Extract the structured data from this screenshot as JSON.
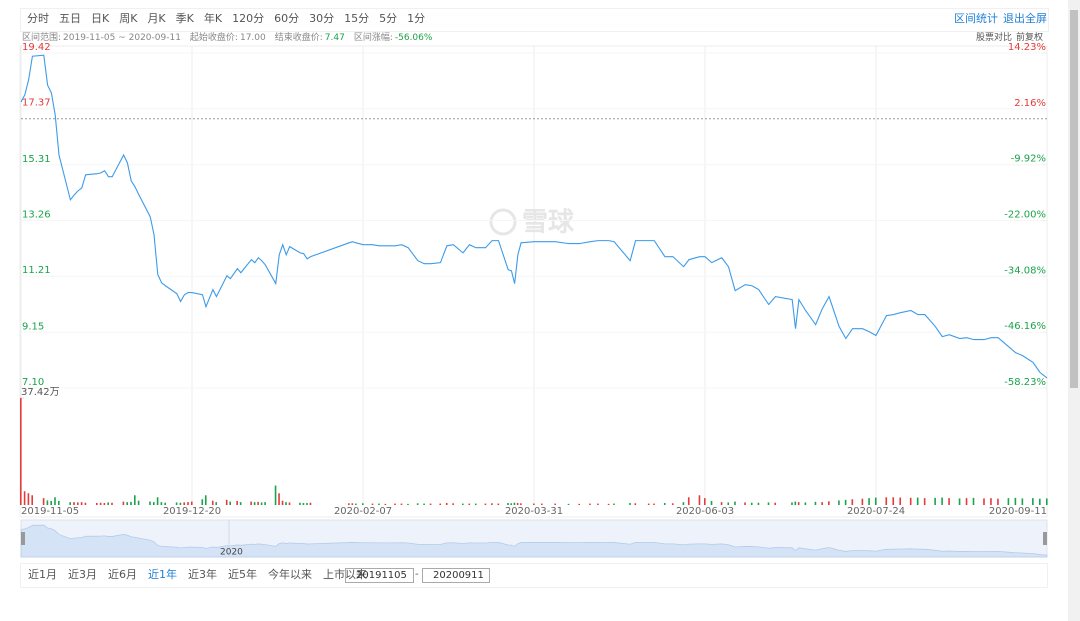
{
  "toolbar": {
    "periods": [
      "分时",
      "五日",
      "日K",
      "周K",
      "月K",
      "季K",
      "年K",
      "120分",
      "60分",
      "30分",
      "15分",
      "5分",
      "1分"
    ],
    "actions": [
      "区间统计",
      "退出全屏"
    ]
  },
  "summary": {
    "range_label": "区间范围:",
    "range": "2019-11-05 ~ 2020-09-11",
    "start_label": "起始收盘价:",
    "end_label": "结束收盘价:",
    "end_close": "7.47",
    "change_label": "区间涨幅:",
    "change": "-56.06%",
    "options": [
      "股票对比",
      "前复权"
    ]
  },
  "chart_data": {
    "type": "line",
    "color": "#3d9be9",
    "up_color": "#e5393a",
    "down_color": "#1aa34a",
    "baseline": {
      "value": 17,
      "label": "17.00"
    },
    "x": [
      "2019-11-05",
      "2019-11-06",
      "2019-11-07",
      "2019-11-08",
      "2019-11-11",
      "2019-11-12",
      "2019-11-13",
      "2019-11-14",
      "2019-11-15",
      "2019-11-18",
      "2019-11-19",
      "2019-11-20",
      "2019-11-21",
      "2019-11-22",
      "2019-11-25",
      "2019-11-26",
      "2019-11-27",
      "2019-11-28",
      "2019-11-29",
      "2019-12-02",
      "2019-12-03",
      "2019-12-04",
      "2019-12-05",
      "2019-12-06",
      "2019-12-09",
      "2019-12-10",
      "2019-12-11",
      "2019-12-12",
      "2019-12-13",
      "2019-12-16",
      "2019-12-17",
      "2019-12-18",
      "2019-12-19",
      "2019-12-20",
      "2019-12-23",
      "2019-12-24",
      "2019-12-26",
      "2019-12-27",
      "2019-12-30",
      "2019-12-31",
      "2020-01-02",
      "2020-01-03",
      "2020-01-06",
      "2020-01-07",
      "2020-01-08",
      "2020-01-09",
      "2020-01-10",
      "2020-01-13",
      "2020-01-14",
      "2020-01-15",
      "2020-01-16",
      "2020-01-17",
      "2020-01-20",
      "2020-01-21",
      "2020-01-22",
      "2020-01-23",
      "2020-02-03",
      "2020-02-04",
      "2020-02-05",
      "2020-02-07",
      "2020-02-10",
      "2020-02-12",
      "2020-02-14",
      "2020-02-17",
      "2020-02-19",
      "2020-02-21",
      "2020-02-24",
      "2020-02-26",
      "2020-02-28",
      "2020-03-02",
      "2020-03-04",
      "2020-03-06",
      "2020-03-09",
      "2020-03-11",
      "2020-03-13",
      "2020-03-16",
      "2020-03-18",
      "2020-03-20",
      "2020-03-23",
      "2020-03-24",
      "2020-03-25",
      "2020-03-26",
      "2020-03-27",
      "2020-03-31",
      "2020-04-03",
      "2020-04-08",
      "2020-04-13",
      "2020-04-17",
      "2020-04-21",
      "2020-04-24",
      "2020-04-28",
      "2020-04-30",
      "2020-05-06",
      "2020-05-08",
      "2020-05-13",
      "2020-05-15",
      "2020-05-19",
      "2020-05-22",
      "2020-05-26",
      "2020-05-28",
      "2020-06-01",
      "2020-06-03",
      "2020-06-05",
      "2020-06-08",
      "2020-06-10",
      "2020-06-12",
      "2020-06-15",
      "2020-06-17",
      "2020-06-19",
      "2020-06-22",
      "2020-06-24",
      "2020-06-29",
      "2020-06-30",
      "2020-07-01",
      "2020-07-03",
      "2020-07-06",
      "2020-07-08",
      "2020-07-10",
      "2020-07-13",
      "2020-07-15",
      "2020-07-17",
      "2020-07-20",
      "2020-07-22",
      "2020-07-24",
      "2020-07-27",
      "2020-07-29",
      "2020-07-31",
      "2020-08-03",
      "2020-08-05",
      "2020-08-07",
      "2020-08-10",
      "2020-08-12",
      "2020-08-14",
      "2020-08-17",
      "2020-08-19",
      "2020-08-21",
      "2020-08-24",
      "2020-08-26",
      "2020-08-28",
      "2020-08-31",
      "2020-09-02",
      "2020-09-04",
      "2020-09-07",
      "2020-09-09",
      "2020-09-11"
    ],
    "values": [
      17.62,
      17.88,
      18.43,
      19.3,
      19.34,
      18.24,
      17.95,
      17.14,
      15.67,
      14.02,
      14.2,
      14.35,
      14.46,
      14.94,
      14.98,
      15.01,
      15.09,
      14.87,
      14.87,
      15.67,
      15.38,
      14.72,
      14.5,
      14.21,
      13.4,
      12.74,
      11.27,
      10.97,
      10.86,
      10.57,
      10.28,
      10.53,
      10.61,
      10.61,
      10.53,
      10.09,
      10.72,
      10.46,
      11.23,
      11.12,
      11.49,
      11.34,
      11.82,
      11.71,
      11.89,
      11.78,
      11.63,
      10.94,
      12.0,
      12.37,
      12.0,
      12.3,
      12.07,
      12.04,
      11.85,
      11.93,
      12.44,
      12.48,
      12.44,
      12.37,
      12.37,
      12.33,
      12.33,
      12.33,
      12.37,
      12.26,
      11.78,
      11.67,
      11.67,
      11.71,
      12.33,
      12.37,
      12.07,
      12.37,
      12.26,
      12.26,
      12.52,
      12.52,
      11.45,
      11.41,
      10.94,
      12.0,
      12.44,
      12.48,
      12.48,
      12.48,
      12.41,
      12.41,
      12.48,
      12.52,
      12.52,
      12.48,
      11.78,
      12.52,
      12.52,
      12.52,
      11.93,
      11.93,
      11.56,
      11.82,
      11.93,
      11.93,
      11.71,
      11.89,
      11.56,
      10.68,
      10.9,
      10.86,
      10.72,
      10.17,
      10.46,
      10.35,
      9.28,
      10.35,
      9.95,
      9.43,
      10.02,
      10.46,
      9.36,
      8.92,
      9.28,
      9.28,
      9.17,
      9.03,
      9.76,
      9.8,
      9.87,
      9.95,
      9.8,
      9.8,
      9.36,
      8.99,
      9.06,
      8.92,
      8.95,
      8.88,
      8.88,
      8.95,
      8.95,
      8.62,
      8.4,
      8.29,
      8.04,
      7.67,
      7.47
    ],
    "ylim": [
      7.1,
      19.42
    ],
    "yticks": [
      19.42,
      17.37,
      15.31,
      13.26,
      11.21,
      9.15,
      {
        "value": 7.1,
        "label": "7.10"
      }
    ],
    "y2lim": [
      -58.23,
      14.23
    ],
    "y2ticks": [
      {
        "value": 14.23,
        "label": "14.23%"
      },
      {
        "value": 2.16,
        "label": "2.16%"
      },
      {
        "value": -9.92,
        "label": "-9.92%"
      },
      {
        "value": -22,
        "label": "-22.00%"
      },
      {
        "value": -34.08,
        "label": "-34.08%"
      },
      {
        "value": -46.16,
        "label": "-46.16%"
      },
      {
        "value": -58.23,
        "label": "-58.23%"
      }
    ],
    "xticks": [
      "2019-11-05",
      "2019-12-20",
      "2020-02-07",
      "2020-03-31",
      "2020-06-03",
      "2020-07-24",
      "2020-09-11"
    ],
    "volume": {
      "ylim": [
        0,
        37.42
      ],
      "yticks": [
        {
          "value": 37.42,
          "label": "37.42万"
        }
      ],
      "values": [
        37.42,
        4.8,
        4.1,
        3.4,
        2.4,
        1.6,
        1.4,
        2.7,
        1.4,
        1.0,
        1.0,
        0.9,
        1.0,
        0.8,
        0.7,
        0.8,
        0.7,
        0.9,
        0.8,
        1.2,
        1.0,
        1.1,
        3.4,
        1.5,
        1.2,
        1.0,
        2.7,
        1.0,
        0.8,
        0.9,
        0.8,
        0.9,
        1.0,
        1.2,
        2.0,
        3.4,
        1.5,
        1.0,
        1.8,
        1.2,
        1.4,
        1.0,
        1.2,
        1.0,
        1.1,
        0.9,
        1.0,
        6.8,
        4.1,
        1.5,
        1.0,
        0.9,
        0.8,
        0.7,
        0.7,
        0.8,
        0.6,
        0.6,
        0.5,
        0.6,
        0.5,
        0.5,
        0.4,
        0.5,
        0.5,
        0.4,
        0.6,
        0.5,
        0.5,
        0.5,
        0.7,
        0.6,
        0.5,
        0.5,
        0.5,
        0.5,
        0.6,
        0.5,
        0.7,
        0.6,
        0.8,
        0.7,
        0.6,
        0.5,
        0.5,
        0.5,
        0.4,
        0.4,
        0.5,
        0.5,
        0.4,
        0.5,
        0.7,
        0.6,
        0.5,
        0.5,
        0.7,
        0.6,
        1.0,
        2.7,
        3.4,
        2.4,
        1.4,
        1.0,
        0.9,
        1.2,
        0.9,
        0.8,
        0.8,
        0.9,
        0.8,
        0.9,
        1.2,
        1.0,
        0.9,
        1.1,
        1.0,
        1.3,
        1.6,
        1.8,
        2.0,
        2.2,
        2.4,
        2.6,
        2.7,
        2.7,
        2.6,
        2.5,
        2.6,
        2.4,
        2.5,
        2.6,
        2.4,
        2.3,
        2.4,
        2.5,
        2.3,
        2.4,
        2.2,
        2.4,
        2.5,
        2.3,
        2.4,
        2.2,
        2.3
      ]
    },
    "watermark": "雪球",
    "navigator_label": "2020"
  },
  "range_bar": {
    "buttons": [
      "近1月",
      "近3月",
      "近6月",
      "近1年",
      "近3年",
      "近5年",
      "今年以来",
      "上市以来"
    ],
    "active": 3,
    "from": "20191105",
    "separator": "-",
    "to": "20200911"
  }
}
